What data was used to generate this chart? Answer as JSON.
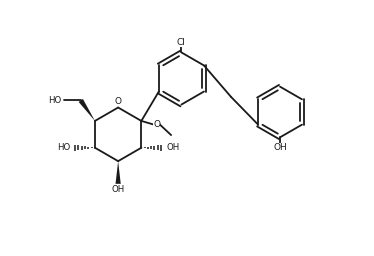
{
  "bg_color": "#ffffff",
  "line_color": "#1a1a1a",
  "line_width": 1.3,
  "figsize": [
    3.74,
    2.56
  ],
  "dpi": 100,
  "xlim": [
    0,
    10
  ],
  "ylim": [
    0,
    6.84
  ]
}
